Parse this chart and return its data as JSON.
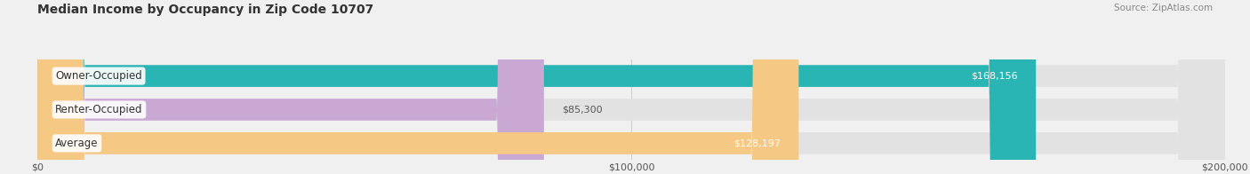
{
  "title": "Median Income by Occupancy in Zip Code 10707",
  "source": "Source: ZipAtlas.com",
  "categories": [
    "Owner-Occupied",
    "Renter-Occupied",
    "Average"
  ],
  "values": [
    168156,
    85300,
    128197
  ],
  "bar_colors": [
    "#2ab5b5",
    "#c9a8d4",
    "#f5c884"
  ],
  "value_labels": [
    "$168,156",
    "$85,300",
    "$128,197"
  ],
  "value_inside": [
    true,
    false,
    true
  ],
  "xlim": [
    0,
    200000
  ],
  "xticks": [
    0,
    100000,
    200000
  ],
  "xtick_labels": [
    "$0",
    "$100,000",
    "$200,000"
  ],
  "background_color": "#f0f0f0",
  "bar_bg_color": "#e2e2e2",
  "title_fontsize": 10,
  "source_fontsize": 7.5,
  "label_fontsize": 8.5,
  "value_fontsize": 8.0
}
